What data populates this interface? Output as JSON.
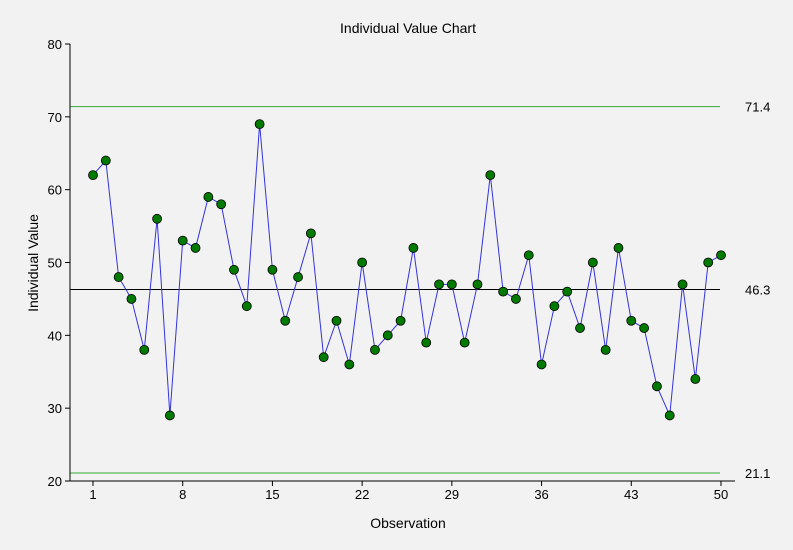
{
  "chart_data": {
    "type": "line",
    "title": "Individual Value Chart",
    "xlabel": "Observation",
    "ylabel": "Individual Value",
    "xlim": [
      1,
      50
    ],
    "ylim": [
      20,
      80
    ],
    "x_ticks": [
      1,
      8,
      15,
      22,
      29,
      36,
      43,
      50
    ],
    "y_ticks": [
      20,
      30,
      40,
      50,
      60,
      70,
      80
    ],
    "grid": false,
    "legend": "none",
    "series": [
      {
        "x": [
          1,
          2,
          3,
          4,
          5,
          6,
          7,
          8,
          9,
          10,
          11,
          12,
          13,
          14,
          15,
          16,
          17,
          18,
          19,
          20,
          21,
          22,
          23,
          24,
          25,
          26,
          27,
          28,
          29,
          30,
          31,
          32,
          33,
          34,
          35,
          36,
          37,
          38,
          39,
          40,
          41,
          42,
          43,
          44,
          45,
          46,
          47,
          48,
          49,
          50
        ],
        "values": [
          62,
          64,
          48,
          45,
          38,
          56,
          29,
          53,
          52,
          59,
          58,
          49,
          44,
          69,
          49,
          42,
          48,
          54,
          37,
          42,
          36,
          50,
          38,
          40,
          42,
          52,
          39,
          47,
          47,
          39,
          47,
          62,
          46,
          45,
          51,
          36,
          44,
          46,
          41,
          50,
          38,
          52,
          42,
          41,
          33,
          29,
          47,
          34,
          50,
          51
        ],
        "line_color": "#3333dd",
        "marker_color": "#007a00"
      }
    ],
    "control_limits": {
      "ucl": {
        "value": 71.4,
        "label": "71.4",
        "color": "#33aa33"
      },
      "center": {
        "value": 46.3,
        "label": "46.3",
        "color": "#000000"
      },
      "lcl": {
        "value": 21.1,
        "label": "21.1",
        "color": "#33aa33"
      }
    }
  }
}
